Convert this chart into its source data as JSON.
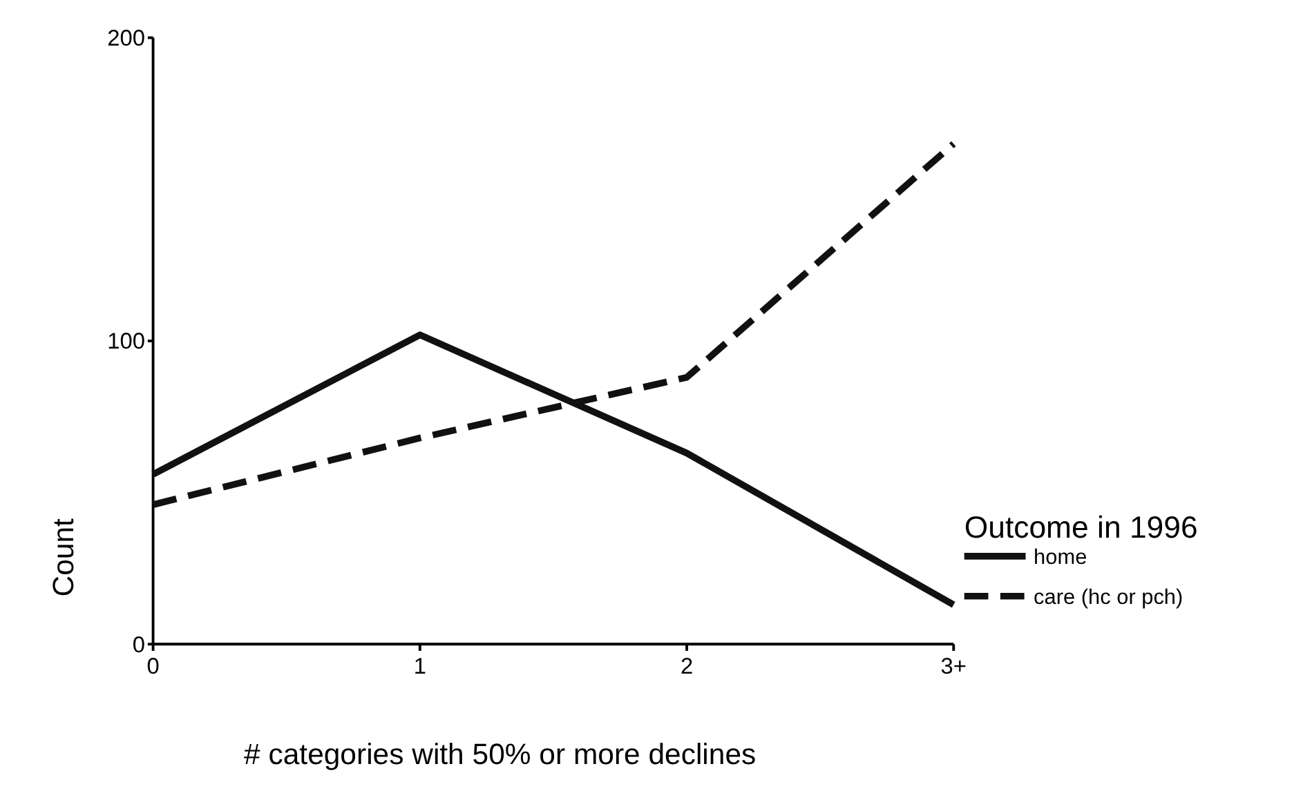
{
  "chart_data": {
    "type": "line",
    "xlabel": "# categories with 50% or more declines",
    "ylabel": "Count",
    "legend_title": "Outcome in 1996",
    "legend": "right",
    "categories": [
      "0",
      "1",
      "2",
      "3+"
    ],
    "ylim": [
      0,
      200
    ],
    "yticks": [
      0,
      100,
      200
    ],
    "grid": false,
    "marker": "none",
    "series": [
      {
        "name": "home",
        "color": "#111111",
        "line_style": "solid",
        "values": [
          56,
          102,
          63,
          13
        ]
      },
      {
        "name": "care (hc or pch)",
        "color": "#111111",
        "line_style": "dashed",
        "values": [
          46,
          68,
          88,
          165
        ]
      }
    ]
  }
}
